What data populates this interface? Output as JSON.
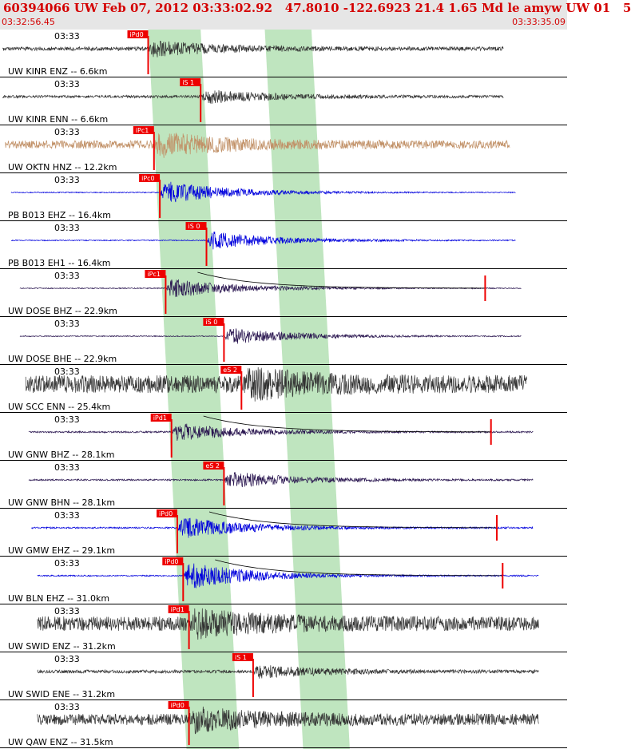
{
  "header": {
    "title": "60394066 UW Feb 07, 2012 03:33:02.92   47.8010 -122.6923 21.4 1.65 Md le amyw UW 01   5",
    "start_time": "03:32:56.45",
    "end_time": "03:33:35.09"
  },
  "colors": {
    "header_bg": "#e6e6e6",
    "header_text": "#d40000",
    "pick": "#ee0000",
    "window": "#bfe5bf",
    "coda": "#000000"
  },
  "pick_bands": [
    {
      "from": 2.5,
      "to": 3.4
    },
    {
      "from": 4.5,
      "to": 5.3
    }
  ],
  "traces": [
    {
      "label": "UW KINR ENZ -- 6.6km",
      "time_label": "03:33",
      "color": "#333333",
      "pick_label": "iPd0",
      "pick_time": 2.5,
      "start": 0,
      "end": 8.6,
      "amp": 0.5,
      "noise": 0.12,
      "coda": false
    },
    {
      "label": "UW KINR ENN -- 6.6km",
      "time_label": "03:33",
      "color": "#333333",
      "pick_label": "iS 1",
      "pick_time": 3.4,
      "start": 0,
      "end": 8.6,
      "amp": 0.45,
      "noise": 0.08,
      "coda": false
    },
    {
      "label": "UW OKTN HNZ -- 12.2km",
      "time_label": "03:33",
      "color": "#c19066",
      "pick_label": "iPc1",
      "pick_time": 2.6,
      "start": 0.05,
      "end": 8.7,
      "amp": 0.7,
      "noise": 0.25,
      "coda": false
    },
    {
      "label": "PB B013 EHZ -- 16.4km",
      "time_label": "03:33",
      "color": "#0000dd",
      "pick_label": "iPc0",
      "pick_time": 2.7,
      "start": 0.15,
      "end": 8.8,
      "amp": 0.75,
      "noise": 0.03,
      "coda": false
    },
    {
      "label": "PB B013 EH1 -- 16.4km",
      "time_label": "03:33",
      "color": "#0000dd",
      "pick_label": "iS 0",
      "pick_time": 3.5,
      "start": 0.15,
      "end": 8.8,
      "amp": 0.6,
      "noise": 0.03,
      "coda": false
    },
    {
      "label": "UW DOSE BHZ -- 22.9km",
      "time_label": "03:33",
      "color": "#2a1650",
      "pick_label": "iPc1",
      "pick_time": 2.8,
      "start": 0.3,
      "end": 8.9,
      "amp": 0.65,
      "noise": 0.03,
      "coda": true
    },
    {
      "label": "UW DOSE BHE -- 22.9km",
      "time_label": "03:33",
      "color": "#2a1650",
      "pick_label": "iS 0",
      "pick_time": 3.8,
      "start": 0.3,
      "end": 8.9,
      "amp": 0.55,
      "noise": 0.03,
      "coda": false
    },
    {
      "label": "UW SCC ENN -- 25.4km",
      "time_label": "03:33",
      "color": "#333333",
      "pick_label": "eS 2",
      "pick_time": 4.1,
      "start": 0.4,
      "end": 9.0,
      "amp": 0.7,
      "noise": 0.55,
      "coda": false
    },
    {
      "label": "UW GNW BHZ -- 28.1km",
      "time_label": "03:33",
      "color": "#2a1650",
      "pick_label": "iPd1",
      "pick_time": 2.9,
      "start": 0.45,
      "end": 9.1,
      "amp": 0.6,
      "noise": 0.05,
      "coda": true
    },
    {
      "label": "UW GNW BHN -- 28.1km",
      "time_label": "03:33",
      "color": "#2a1650",
      "pick_label": "eS 2",
      "pick_time": 3.8,
      "start": 0.45,
      "end": 9.1,
      "amp": 0.55,
      "noise": 0.05,
      "coda": false
    },
    {
      "label": "UW GMW EHZ -- 29.1km",
      "time_label": "03:33",
      "color": "#0000dd",
      "pick_label": "iPd0",
      "pick_time": 3.0,
      "start": 0.5,
      "end": 9.1,
      "amp": 0.7,
      "noise": 0.05,
      "coda": true
    },
    {
      "label": "UW BLN EHZ -- 31.0km",
      "time_label": "03:33",
      "color": "#0000dd",
      "pick_label": "iPd0",
      "pick_time": 3.1,
      "start": 0.6,
      "end": 9.2,
      "amp": 0.9,
      "noise": 0.04,
      "coda": true
    },
    {
      "label": "UW SWID ENZ -- 31.2km",
      "time_label": "03:33",
      "color": "#333333",
      "pick_label": "iPd1",
      "pick_time": 3.2,
      "start": 0.6,
      "end": 9.2,
      "amp": 0.65,
      "noise": 0.45,
      "coda": false
    },
    {
      "label": "UW SWID ENE -- 31.2km",
      "time_label": "03:33",
      "color": "#333333",
      "pick_label": "iS 1",
      "pick_time": 4.3,
      "start": 0.6,
      "end": 9.2,
      "amp": 0.4,
      "noise": 0.1,
      "coda": false
    },
    {
      "label": "UW QAW ENZ -- 31.5km",
      "time_label": "03:33",
      "color": "#333333",
      "pick_label": "iPd0",
      "pick_time": 3.2,
      "start": 0.6,
      "end": 9.2,
      "amp": 0.6,
      "noise": 0.35,
      "coda": false
    }
  ]
}
